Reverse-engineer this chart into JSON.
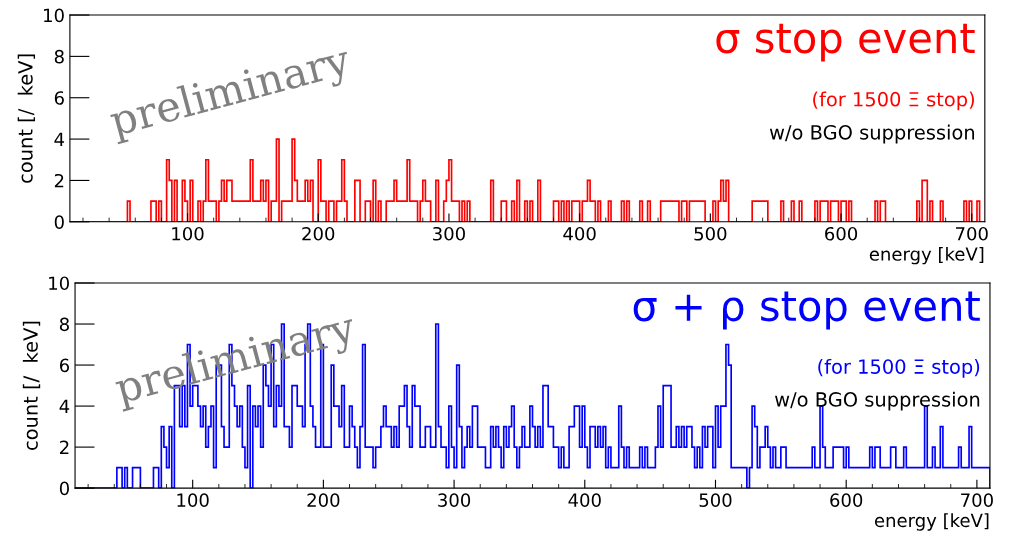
{
  "chart_data": [
    {
      "type": "histogram",
      "title": "σ stop event",
      "subtitle": "(for 1500 Ξ stop)",
      "xlabel": "energy [keV]",
      "ylabel": "count [/  keV]",
      "annotations": [
        "w/o BGO suppression",
        "preliminary"
      ],
      "xlim": [
        10,
        710
      ],
      "ylim": [
        0,
        10
      ],
      "xticks": [
        100,
        200,
        300,
        400,
        500,
        600,
        700
      ],
      "yticks": [
        0,
        2,
        4,
        6,
        8,
        10
      ],
      "bins": [
        10,
        12,
        14,
        16,
        18,
        20,
        22,
        24,
        26,
        28,
        30,
        32,
        34,
        36,
        38,
        40,
        42,
        44,
        46,
        48,
        50,
        52,
        54,
        56,
        58,
        60,
        62,
        64,
        66,
        68,
        70,
        72,
        74,
        76,
        78,
        80,
        82,
        84,
        86,
        88,
        90,
        92,
        94,
        96,
        98,
        100,
        102,
        104,
        106,
        108,
        110,
        112,
        114,
        116,
        118,
        120,
        122,
        124,
        126,
        128,
        130,
        132,
        134,
        136,
        138,
        140,
        142,
        144,
        146,
        148,
        150,
        152,
        154,
        156,
        158,
        160,
        162,
        164,
        166,
        168,
        170,
        172,
        174,
        176,
        178,
        180,
        182,
        184,
        186,
        188,
        190,
        192,
        194,
        196,
        198,
        200,
        202,
        204,
        206,
        208,
        210,
        212,
        214,
        216,
        218,
        220,
        222,
        224,
        226,
        228,
        230,
        232,
        234,
        236,
        238,
        240,
        242,
        244,
        246,
        248,
        250,
        252,
        254,
        256,
        258,
        260,
        262,
        264,
        266,
        268,
        270,
        272,
        274,
        276,
        278,
        280,
        282,
        284,
        286,
        288,
        290,
        292,
        294,
        296,
        298,
        300,
        302,
        304,
        306,
        308,
        310,
        312,
        314,
        316,
        318,
        320,
        322,
        324,
        326,
        328,
        330,
        332,
        334,
        336,
        338,
        340,
        342,
        344,
        346,
        348,
        350,
        352,
        354,
        356,
        358,
        360,
        362,
        364,
        366,
        368,
        370,
        372,
        374,
        376,
        378,
        380,
        382,
        384,
        386,
        388,
        390,
        392,
        394,
        396,
        398,
        400,
        402,
        404,
        406,
        408,
        410,
        412,
        414,
        416,
        418,
        420,
        422,
        424,
        426,
        428,
        430,
        432,
        434,
        436,
        438,
        440,
        442,
        444,
        446,
        448,
        450,
        452,
        454,
        456,
        458,
        460,
        462,
        464,
        466,
        468,
        470,
        472,
        474,
        476,
        478,
        480,
        482,
        484,
        486,
        488,
        490,
        492,
        494,
        496,
        498,
        500,
        502,
        504,
        506,
        508,
        510,
        512,
        514,
        516,
        518,
        520,
        522,
        524,
        526,
        528,
        530,
        532,
        534,
        536,
        538,
        540,
        542,
        544,
        546,
        548,
        550,
        552,
        554,
        556,
        558,
        560,
        562,
        564,
        566,
        568,
        570,
        572,
        574,
        576,
        578,
        580,
        582,
        584,
        586,
        588,
        590,
        592,
        594,
        596,
        598,
        600,
        602,
        604,
        606,
        608,
        610,
        612,
        614,
        616,
        618,
        620,
        622,
        624,
        626,
        628,
        630,
        632,
        634,
        636,
        638,
        640,
        642,
        644,
        646,
        648,
        650,
        652,
        654,
        656,
        658,
        660,
        662,
        664,
        666,
        668,
        670,
        672,
        674,
        676,
        678,
        680,
        682,
        684,
        686,
        688,
        690,
        692,
        694,
        696,
        698,
        700,
        702,
        704,
        706,
        708,
        710
      ],
      "series": [
        {
          "color": "#ff0000",
          "values": [
            0,
            0,
            0,
            0,
            0,
            0,
            0,
            0,
            0,
            0,
            0,
            0,
            0,
            0,
            0,
            0,
            0,
            0,
            0,
            0,
            0,
            0,
            1,
            0,
            0,
            0,
            0,
            0,
            0,
            0,
            0,
            1,
            1,
            0,
            1,
            0,
            0,
            3,
            2,
            0,
            2,
            0,
            0,
            2,
            1,
            0,
            2,
            0,
            0,
            1,
            0,
            1,
            3,
            1,
            1,
            1,
            0,
            1,
            2,
            1,
            2,
            2,
            1,
            1,
            1,
            1,
            1,
            1,
            1,
            3,
            1,
            1,
            1,
            2,
            1,
            2,
            0,
            1,
            1,
            4,
            0,
            1,
            1,
            1,
            1,
            4,
            2,
            1,
            1,
            1,
            2,
            1,
            2,
            0,
            0,
            3,
            1,
            1,
            0,
            1,
            1,
            0,
            1,
            1,
            3,
            1,
            0,
            0,
            0,
            2,
            2,
            0,
            0,
            1,
            1,
            0,
            2,
            0,
            1,
            0,
            0,
            1,
            1,
            1,
            2,
            1,
            1,
            1,
            1,
            3,
            1,
            1,
            1,
            0,
            1,
            2,
            1,
            1,
            0,
            0,
            2,
            0,
            0,
            1,
            2,
            3,
            1,
            1,
            1,
            0,
            1,
            0,
            1,
            0,
            0,
            0,
            0,
            0,
            0,
            0,
            0,
            2,
            0,
            0,
            0,
            1,
            1,
            0,
            0,
            1,
            0,
            2,
            0,
            0,
            1,
            0,
            1,
            0,
            0,
            2,
            0,
            0,
            0,
            0,
            0,
            1,
            1,
            0,
            1,
            0,
            1,
            0,
            1,
            1,
            1,
            0,
            1,
            1,
            2,
            1,
            1,
            0,
            1,
            0,
            0,
            0,
            1,
            0,
            0,
            0,
            0,
            1,
            0,
            1,
            0,
            0,
            0,
            0,
            1,
            0,
            0,
            1,
            0,
            0,
            0,
            0,
            1,
            1,
            1,
            1,
            1,
            1,
            1,
            0,
            1,
            1,
            0,
            1,
            1,
            1,
            1,
            1,
            1,
            0,
            0,
            0,
            1,
            0,
            1,
            2,
            1,
            2,
            0,
            0,
            0,
            0,
            0,
            0,
            0,
            0,
            0,
            1,
            1,
            1,
            1,
            1,
            1,
            0,
            0,
            0,
            0,
            0,
            1,
            0,
            0,
            0,
            1,
            0,
            0,
            1,
            0,
            0,
            0,
            0,
            0,
            1,
            0,
            1,
            1,
            1,
            0,
            1,
            1,
            1,
            0,
            1,
            1,
            0,
            1,
            0,
            0,
            0,
            0,
            0,
            0,
            0,
            0,
            0,
            1,
            0,
            1,
            1,
            0,
            0,
            0,
            0,
            0,
            0,
            0,
            0,
            0,
            0,
            0,
            0,
            1,
            0,
            2,
            2,
            0,
            1,
            0,
            0,
            0,
            1,
            0,
            0,
            0,
            0,
            0,
            0,
            0,
            0,
            1,
            0,
            1,
            0,
            0,
            1,
            0,
            0
          ]
        }
      ]
    },
    {
      "type": "histogram",
      "title": "σ + ρ stop event",
      "subtitle": "(for 1500 Ξ stop)",
      "xlabel": "energy [keV]",
      "ylabel": "count [/  keV]",
      "annotations": [
        "w/o BGO suppression",
        "preliminary"
      ],
      "xlim": [
        10,
        710
      ],
      "ylim": [
        0,
        10
      ],
      "xticks": [
        100,
        200,
        300,
        400,
        500,
        600,
        700
      ],
      "yticks": [
        0,
        2,
        4,
        6,
        8,
        10
      ],
      "bins": [
        10,
        12,
        14,
        16,
        18,
        20,
        22,
        24,
        26,
        28,
        30,
        32,
        34,
        36,
        38,
        40,
        42,
        44,
        46,
        48,
        50,
        52,
        54,
        56,
        58,
        60,
        62,
        64,
        66,
        68,
        70,
        72,
        74,
        76,
        78,
        80,
        82,
        84,
        86,
        88,
        90,
        92,
        94,
        96,
        98,
        100,
        102,
        104,
        106,
        108,
        110,
        112,
        114,
        116,
        118,
        120,
        122,
        124,
        126,
        128,
        130,
        132,
        134,
        136,
        138,
        140,
        142,
        144,
        146,
        148,
        150,
        152,
        154,
        156,
        158,
        160,
        162,
        164,
        166,
        168,
        170,
        172,
        174,
        176,
        178,
        180,
        182,
        184,
        186,
        188,
        190,
        192,
        194,
        196,
        198,
        200,
        202,
        204,
        206,
        208,
        210,
        212,
        214,
        216,
        218,
        220,
        222,
        224,
        226,
        228,
        230,
        232,
        234,
        236,
        238,
        240,
        242,
        244,
        246,
        248,
        250,
        252,
        254,
        256,
        258,
        260,
        262,
        264,
        266,
        268,
        270,
        272,
        274,
        276,
        278,
        280,
        282,
        284,
        286,
        288,
        290,
        292,
        294,
        296,
        298,
        300,
        302,
        304,
        306,
        308,
        310,
        312,
        314,
        316,
        318,
        320,
        322,
        324,
        326,
        328,
        330,
        332,
        334,
        336,
        338,
        340,
        342,
        344,
        346,
        348,
        350,
        352,
        354,
        356,
        358,
        360,
        362,
        364,
        366,
        368,
        370,
        372,
        374,
        376,
        378,
        380,
        382,
        384,
        386,
        388,
        390,
        392,
        394,
        396,
        398,
        400,
        402,
        404,
        406,
        408,
        410,
        412,
        414,
        416,
        418,
        420,
        422,
        424,
        426,
        428,
        430,
        432,
        434,
        436,
        438,
        440,
        442,
        444,
        446,
        448,
        450,
        452,
        454,
        456,
        458,
        460,
        462,
        464,
        466,
        468,
        470,
        472,
        474,
        476,
        478,
        480,
        482,
        484,
        486,
        488,
        490,
        492,
        494,
        496,
        498,
        500,
        502,
        504,
        506,
        508,
        510,
        512,
        514,
        516,
        518,
        520,
        522,
        524,
        526,
        528,
        530,
        532,
        534,
        536,
        538,
        540,
        542,
        544,
        546,
        548,
        550,
        552,
        554,
        556,
        558,
        560,
        562,
        564,
        566,
        568,
        570,
        572,
        574,
        576,
        578,
        580,
        582,
        584,
        586,
        588,
        590,
        592,
        594,
        596,
        598,
        600,
        602,
        604,
        606,
        608,
        610,
        612,
        614,
        616,
        618,
        620,
        622,
        624,
        626,
        628,
        630,
        632,
        634,
        636,
        638,
        640,
        642,
        644,
        646,
        648,
        650,
        652,
        654,
        656,
        658,
        660,
        662,
        664,
        666,
        668,
        670,
        672,
        674,
        676,
        678,
        680,
        682,
        684,
        686,
        688,
        690,
        692,
        694,
        696,
        698,
        700,
        702,
        704,
        706,
        708,
        710
      ],
      "series": [
        {
          "color": "#0000ff",
          "values": [
            0,
            0,
            0,
            0,
            0,
            0,
            0,
            0,
            0,
            0,
            0,
            0,
            0,
            0,
            0,
            0,
            1,
            1,
            0,
            1,
            0,
            0,
            1,
            1,
            1,
            0,
            0,
            0,
            0,
            0,
            1,
            1,
            0,
            3,
            2,
            1,
            3,
            0,
            5,
            5,
            3,
            5,
            3,
            7,
            4,
            5,
            5,
            4,
            3,
            4,
            2,
            3,
            4,
            1,
            6,
            6,
            3,
            2,
            2,
            7,
            5,
            4,
            3,
            4,
            2,
            1,
            5,
            0,
            4,
            3,
            4,
            2,
            6,
            5,
            4,
            7,
            3,
            5,
            4,
            8,
            3,
            3,
            2,
            5,
            5,
            4,
            4,
            3,
            7,
            8,
            4,
            3,
            2,
            2,
            7,
            2,
            2,
            2,
            6,
            4,
            4,
            3,
            5,
            2,
            2,
            4,
            3,
            2,
            1,
            3,
            7,
            2,
            2,
            2,
            1,
            2,
            2,
            3,
            4,
            3,
            3,
            2,
            3,
            2,
            4,
            4,
            5,
            3,
            2,
            5,
            4,
            4,
            2,
            2,
            3,
            3,
            2,
            2,
            8,
            3,
            2,
            2,
            1,
            4,
            2,
            1,
            6,
            3,
            1,
            2,
            3,
            2,
            4,
            4,
            2,
            2,
            2,
            1,
            1,
            3,
            2,
            3,
            2,
            1,
            3,
            2,
            3,
            4,
            2,
            1,
            2,
            3,
            2,
            2,
            4,
            3,
            2,
            3,
            2,
            5,
            5,
            3,
            3,
            2,
            2,
            1,
            2,
            1,
            1,
            3,
            3,
            4,
            4,
            2,
            4,
            2,
            1,
            3,
            3,
            2,
            3,
            2,
            3,
            1,
            2,
            1,
            1,
            1,
            4,
            2,
            1,
            2,
            1,
            1,
            1,
            1,
            2,
            1,
            2,
            1,
            1,
            1,
            2,
            4,
            2,
            5,
            5,
            5,
            2,
            2,
            3,
            2,
            3,
            2,
            3,
            3,
            2,
            1,
            2,
            1,
            3,
            2,
            3,
            3,
            1,
            4,
            2,
            4,
            4,
            7,
            6,
            1,
            1,
            1,
            1,
            1,
            1,
            0,
            1,
            4,
            3,
            1,
            2,
            2,
            3,
            2,
            1,
            2,
            1,
            1,
            2,
            2,
            1,
            1,
            1,
            1,
            1,
            1,
            1,
            1,
            1,
            1,
            2,
            1,
            1,
            4,
            2,
            1,
            1,
            1,
            2,
            2,
            2,
            2,
            1,
            2,
            1,
            1,
            1,
            1,
            1,
            1,
            1,
            1,
            2,
            1,
            2,
            2,
            1,
            1,
            1,
            1,
            2,
            2,
            1,
            1,
            1,
            2,
            1,
            1,
            1,
            1,
            1,
            1,
            1,
            4,
            1,
            1,
            2,
            1,
            1,
            3,
            1,
            1,
            1,
            1,
            1,
            1,
            2,
            1,
            1,
            1,
            3,
            1,
            1,
            1,
            1,
            1,
            1,
            1
          ]
        }
      ]
    }
  ]
}
